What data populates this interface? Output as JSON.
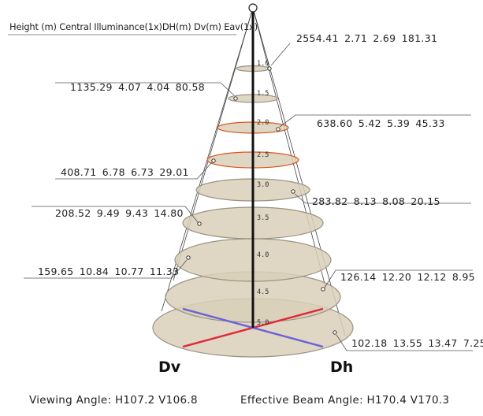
{
  "header_label": "Height (m) Central Illuminance(1x)DH(m)  Dv(m)   Eav(1x)",
  "rows": [
    {
      "height": "1.0",
      "values": "2554.41   2.71   2.69   181.31"
    },
    {
      "height": "1.5",
      "values": "1135.29   4.07   4.04   80.58"
    },
    {
      "height": "2.0",
      "values": "638.60   5.42   5.39   45.33"
    },
    {
      "height": "2.5",
      "values": "408.71   6.78   6.73   29.01"
    },
    {
      "height": "3.0",
      "values": "283.82   8.13   8.08   20.15"
    },
    {
      "height": "3.5",
      "values": "208.52   9.49   9.43   14.80"
    },
    {
      "height": "4.0",
      "values": "159.65   10.84   10.77   11.33"
    },
    {
      "height": "4.5",
      "values": "126.14   12.20   12.12   8.95"
    },
    {
      "height": "5.0",
      "values": "102.18   13.55   13.47   7.25"
    }
  ],
  "axis_labels": {
    "dv": "Dv",
    "dh": "Dh"
  },
  "footer": {
    "viewing_angle": "Viewing Angle: H107.2   V106.8",
    "beam_angle": "Effective Beam Angle: H170.4   V170.3"
  },
  "colors": {
    "disc_fill": "#d9d0b8",
    "disc_edge": "#9a9284",
    "pole": "#111111",
    "accent_orange": "#d9541a",
    "accent_red": "#e0283a",
    "accent_blue": "#6a62d8"
  }
}
